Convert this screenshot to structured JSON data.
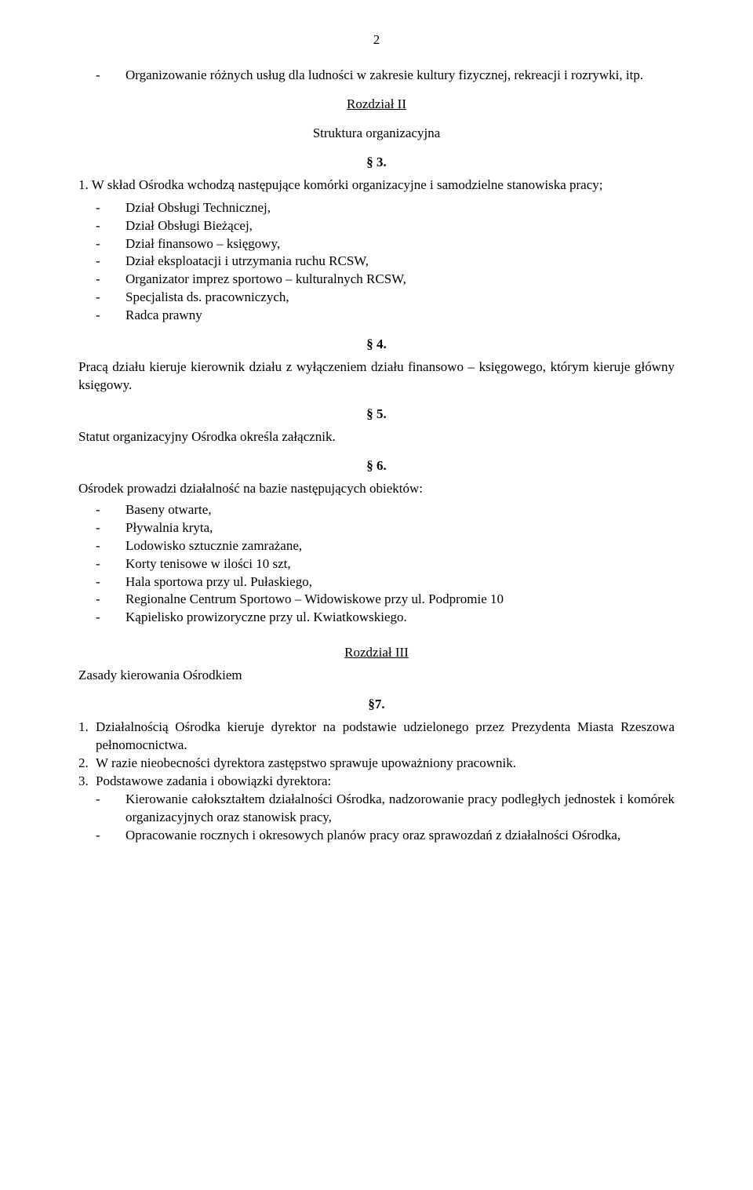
{
  "page_number": "2",
  "intro_bullet": "Organizowanie różnych usług dla ludności w zakresie kultury fizycznej, rekreacji i rozrywki, itp.",
  "chapter2": "Rozdział II",
  "chapter2_title": "Struktura organizacyjna",
  "s3": "§ 3.",
  "s3_lead": "W skład Ośrodka wchodzą następujące komórki organizacyjne i samodzielne stanowiska pracy;",
  "s3_items": {
    "0": "Dział Obsługi Technicznej,",
    "1": "Dział Obsługi Bieżącej,",
    "2": "Dział finansowo – księgowy,",
    "3": "Dział eksploatacji i utrzymania ruchu RCSW,",
    "4": "Organizator imprez sportowo – kulturalnych RCSW,",
    "5": "Specjalista ds. pracowniczych,",
    "6": "Radca prawny"
  },
  "s4": "§ 4.",
  "s4_text": "Pracą działu kieruje kierownik działu z wyłączeniem działu finansowo – księgowego, którym kieruje główny księgowy.",
  "s5": "§ 5.",
  "s5_text": "Statut organizacyjny Ośrodka określa załącznik.",
  "s6": "§ 6.",
  "s6_lead": "Ośrodek prowadzi działalność na bazie następujących obiektów:",
  "s6_items": {
    "0": "Baseny otwarte,",
    "1": "Pływalnia kryta,",
    "2": "Lodowisko sztucznie zamrażane,",
    "3": "Korty tenisowe w ilości 10 szt,",
    "4": "Hala sportowa przy ul. Pułaskiego,",
    "5": "Regionalne Centrum Sportowo – Widowiskowe przy ul. Podpromie 10",
    "6": "Kąpielisko prowizoryczne przy ul. Kwiatkowskiego."
  },
  "chapter3": "Rozdział III",
  "chapter3_left": "Zasady kierowania Ośrodkiem",
  "s7": "§7.",
  "s7_items": {
    "0": {
      "n": "1.",
      "t": "Działalnością Ośrodka kieruje dyrektor na podstawie udzielonego przez Prezydenta Miasta Rzeszowa pełnomocnictwa."
    },
    "1": {
      "n": "2.",
      "t": "W razie nieobecności dyrektora zastępstwo sprawuje upoważniony pracownik."
    },
    "2": {
      "n": "3.",
      "t": "Podstawowe zadania i obowiązki dyrektora:"
    }
  },
  "s7_sub": {
    "0": "Kierowanie całokształtem działalności Ośrodka, nadzorowanie pracy podległych jednostek i komórek organizacyjnych oraz stanowisk pracy,",
    "1": "Opracowanie rocznych i okresowych planów pracy oraz sprawozdań z działalności Ośrodka,"
  }
}
